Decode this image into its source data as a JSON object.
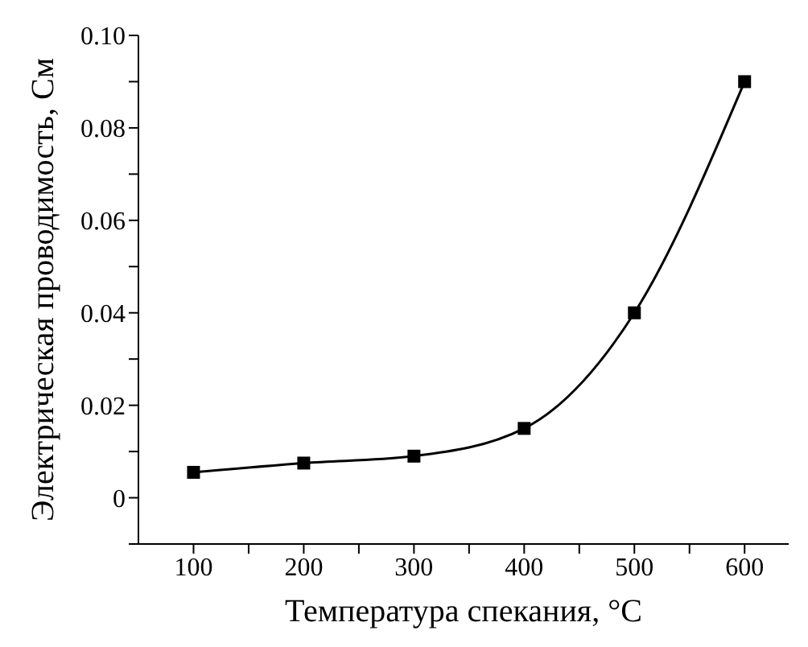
{
  "chart_data": {
    "type": "line",
    "xlabel": "Температура спекания, °C",
    "ylabel": "Электрическая проводимость, См",
    "x": [
      100,
      200,
      300,
      400,
      500,
      600
    ],
    "series": [
      {
        "color": "#000000",
        "values": [
          0.0055,
          0.0075,
          0.009,
          0.015,
          0.04,
          0.09
        ]
      }
    ],
    "xlim": [
      50,
      640
    ],
    "xticks": [
      100,
      {
        "value": 150,
        "label": null
      },
      200,
      {
        "value": 250,
        "label": null
      },
      300,
      {
        "value": 350,
        "label": null
      },
      400,
      {
        "value": 450,
        "label": null
      },
      500,
      {
        "value": 550,
        "label": null
      },
      600
    ],
    "ylim": [
      -0.01,
      0.1
    ],
    "yticks": [
      {
        "value": -0.01,
        "label": null
      },
      0,
      {
        "value": 0.01,
        "label": null
      },
      0.02,
      {
        "value": 0.03,
        "label": null
      },
      0.04,
      {
        "value": 0.05,
        "label": null
      },
      0.06,
      {
        "value": 0.07,
        "label": null
      },
      0.08,
      {
        "value": 0.09,
        "label": null
      },
      {
        "value": 0.1,
        "label": "0.10"
      }
    ],
    "grid": false,
    "legend": false,
    "marker": "square",
    "line_style": "solid"
  }
}
